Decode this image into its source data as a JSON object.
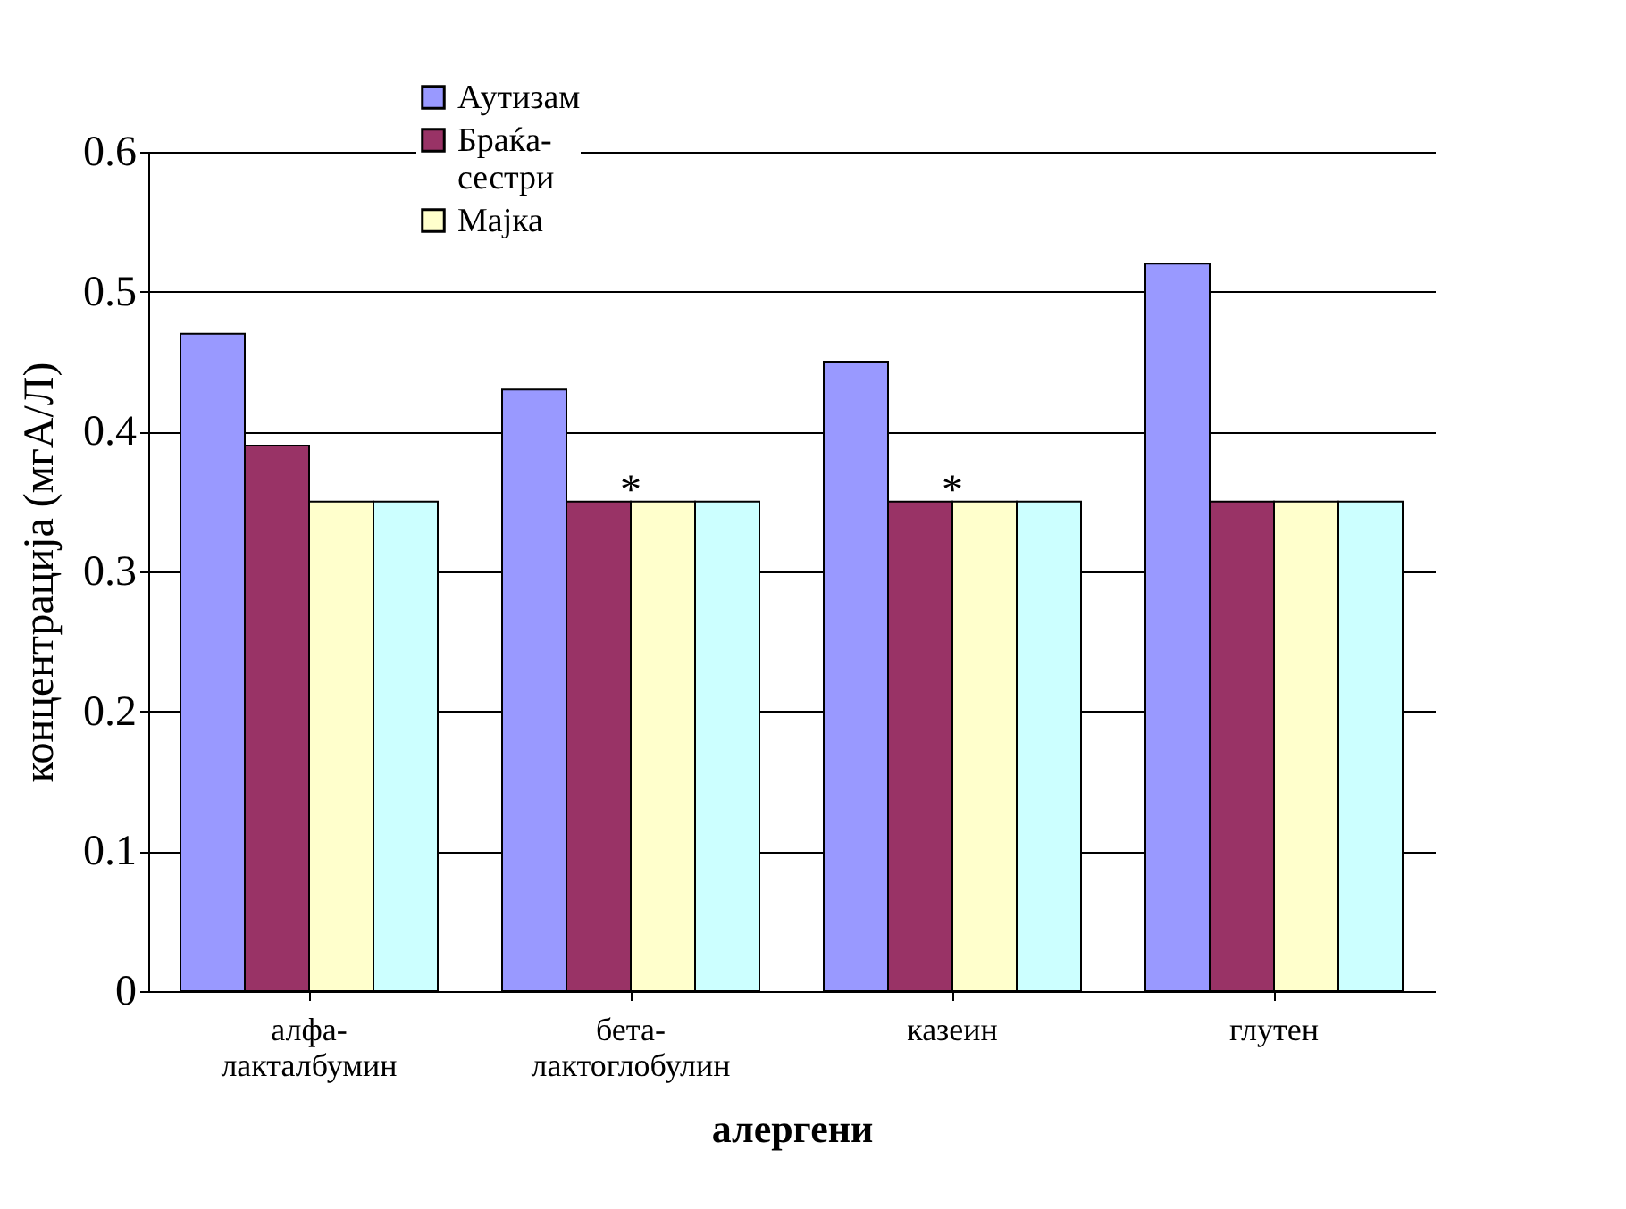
{
  "chart_data": {
    "type": "bar",
    "xlabel": "алергени",
    "ylabel": "концентрација (мгА/Л)",
    "categories": [
      "алфа-лакталбумин",
      "бета-лактоглобулин",
      "казеин",
      "глутен"
    ],
    "series": [
      {
        "name": "Аутизам",
        "color": "#9999ff",
        "values": [
          0.47,
          0.43,
          0.45,
          0.52
        ]
      },
      {
        "name": "Браќа-сестри",
        "color": "#993366",
        "values": [
          0.39,
          0.35,
          0.35,
          0.35
        ]
      },
      {
        "name": "Мајка",
        "color": "#ffffcc",
        "values": [
          0.35,
          0.35,
          0.35,
          0.35
        ]
      },
      {
        "color": "#ccffff",
        "values": [
          0.35,
          0.35,
          0.35,
          0.35
        ]
      }
    ],
    "ylim": [
      0,
      0.6
    ],
    "yticks": [
      0,
      0.1,
      0.2,
      0.3,
      0.4,
      0.5,
      0.6
    ],
    "grid": "y",
    "legend": "top",
    "annotations": [
      "*",
      "*"
    ]
  }
}
